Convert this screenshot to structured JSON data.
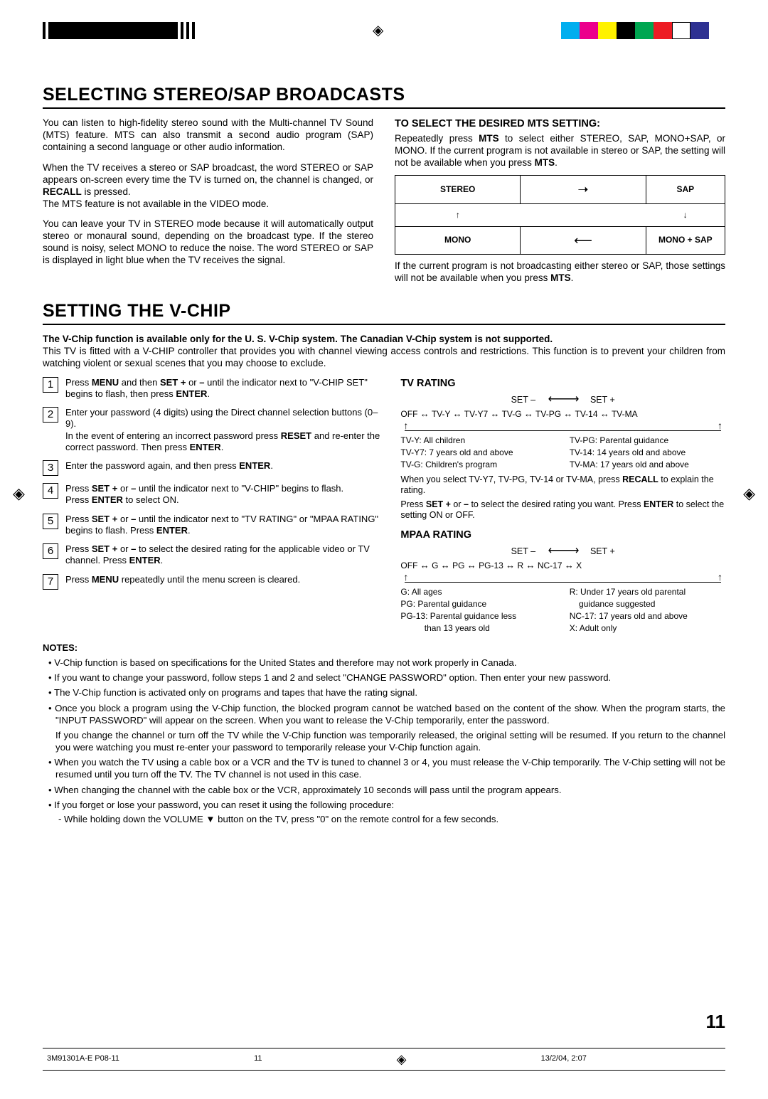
{
  "reg_colors": [
    "#00aeef",
    "#ec008c",
    "#fff200",
    "#000000",
    "#00a651",
    "#ed1c24",
    "#ffffff",
    "#2e3192"
  ],
  "section1": {
    "title": "SELECTING STEREO/SAP BROADCASTS",
    "left_p1": "You can listen to high-fidelity stereo sound with the Multi-channel TV Sound (MTS) feature. MTS can also transmit a second audio program (SAP) containing a second language or other audio information.",
    "left_p2a": "When the TV receives a stereo or SAP broadcast, the word STEREO or SAP appears on-screen every time the TV is turned on, the channel is changed, or ",
    "left_p2b": " is pressed.",
    "left_p2_recall": "RECALL",
    "left_p3": "The MTS feature is not available in the VIDEO mode.",
    "left_p4": "You can leave your TV in STEREO mode because it will automatically output stereo or monaural sound, depending on the broadcast type. If the stereo sound is noisy, select MONO to reduce the noise. The word STEREO or SAP is displayed in light blue when the TV receives the signal.",
    "right_head": "TO SELECT THE DESIRED MTS SETTING:",
    "right_p1a": "Repeatedly press ",
    "right_p1_mts": "MTS",
    "right_p1b": " to select either STEREO, SAP, MONO+SAP, or MONO. If the current program is not available in stereo or SAP, the setting will not be available when you press ",
    "right_p1c": ".",
    "mts_stereo": "STEREO",
    "mts_sap": "SAP",
    "mts_mono": "MONO",
    "mts_monosap": "MONO + SAP",
    "right_p2a": "If the current program is not broadcasting either stereo or SAP, those  settings will not be available when you press ",
    "right_p2b": "."
  },
  "section2": {
    "title": "SETTING THE V-CHIP",
    "intro_bold": "The V-Chip function is available only for the U. S. V-Chip system. The Canadian V-Chip system is not supported.",
    "intro_rest": "This TV is fitted with a V-CHIP controller that provides you with channel viewing access controls and restrictions. This function is to prevent your children from watching violent or sexual scenes that you may choose to exclude.",
    "steps": [
      "Press <b>MENU</b> and then <b>SET +</b> or <b>–</b> until the indicator next to \"V-CHIP SET\" begins to flash, then press <b>ENTER</b>.",
      "Enter your password (4 digits) using the Direct channel selection buttons (0–9).<br>In the event of entering an incorrect password press <b>RESET</b> and re-enter  the correct password. Then press <b>ENTER</b>.",
      "Enter the password again, and then press <b>ENTER</b>.",
      "Press <b>SET +</b> or <b>–</b> until the indicator next to \"V-CHIP\" begins to flash.<br>Press <b>ENTER</b> to select ON.",
      "Press <b>SET +</b> or <b>–</b> until the indicator next to \"TV RATING\" or \"MPAA RATING\" begins to flash. Press <b>ENTER</b>.",
      "Press <b>SET +</b> or <b>–</b> to select the desired rating for the applicable video or TV channel. Press <b>ENTER</b>.",
      "Press <b>MENU</b> repeatedly until the menu screen is cleared."
    ],
    "tv_rating_head": "TV RATING",
    "set_minus": "SET –",
    "set_plus": "SET +",
    "tv_ratings": [
      "OFF",
      "TV-Y",
      "TV-Y7",
      "TV-G",
      "TV-PG",
      "TV-14",
      "TV-MA"
    ],
    "tv_legend_left": [
      "TV-Y: All children",
      "TV-Y7: 7 years old and above",
      "TV-G: Children's program"
    ],
    "tv_legend_right": [
      "TV-PG: Parental guidance",
      "TV-14: 14 years old and above",
      "TV-MA: 17 years old and above"
    ],
    "tv_note1": "When you select TV-Y7, TV-PG, TV-14 or TV-MA, press <b>RECALL</b> to explain the rating.",
    "tv_note2": "Press <b>SET +</b> or <b>–</b> to select the desired rating you want. Press <b>ENTER</b> to select the setting ON or OFF.",
    "mpaa_head": "MPAA RATING",
    "mpaa_ratings": [
      "OFF",
      "G",
      "PG",
      "PG-13",
      "R",
      "NC-17",
      "X"
    ],
    "mpaa_legend_left": [
      "G: All ages",
      "PG: Parental guidance",
      "PG-13: Parental guidance less",
      "          than 13 years old"
    ],
    "mpaa_legend_right": [
      "R: Under 17 years old parental",
      "    guidance suggested",
      "NC-17: 17 years old and above",
      "X: Adult only"
    ],
    "notes_head": "NOTES:",
    "notes": [
      "V-Chip function is based on specifications for the United States and therefore may not work properly in Canada.",
      "If you want to change your password, follow steps 1 and 2 and select \"CHANGE PASSWORD\" option. Then enter your new password.",
      "The V-Chip function is activated only on programs and tapes that have the rating signal.",
      "Once you block a program using the V-Chip function, the blocked program cannot be watched based on the content of the show. When the program starts, the \"INPUT PASSWORD\" will appear on the screen. When you want to release the V-Chip temporarily, enter the password.",
      "__SPLIT__If you change the channel or turn off the TV while the V-Chip function was temporarily released, the original setting will be resumed. If you return to the channel you were watching you must re-enter your password to temporarily release your V-Chip function again.",
      "When you watch the TV using a cable box or a VCR and the TV is tuned to channel 3 or 4, you must release the V-Chip temporarily. The V-Chip setting will not be resumed until you turn off the TV. The TV channel is not used in this case.",
      "When changing the channel with the cable box or the VCR, approximately 10 seconds will pass until the program appears.",
      "If you forget or lose your password, you can reset it using the following procedure:"
    ],
    "notes_sub": "- While holding down the VOLUME ▼ button on the TV, press \"0\" on the remote control for a few seconds.",
    "page_num": "11",
    "footer_left": "3M91301A-E P08-11",
    "footer_mid": "11",
    "footer_right": "13/2/04, 2:07"
  }
}
